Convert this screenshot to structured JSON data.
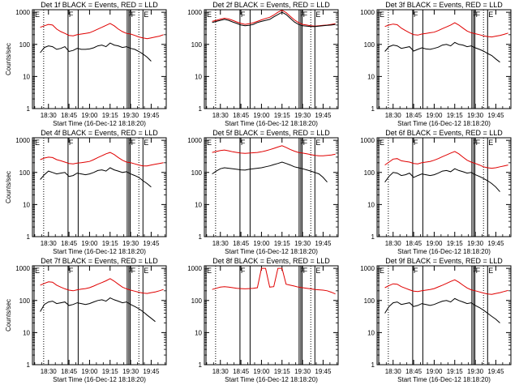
{
  "chart_data": {
    "type": "line",
    "xlabel": "Start Time (16-Dec-12 18:18:20)",
    "ylabel": "Counts/sec",
    "x_ticks": [
      "18:30",
      "18:45",
      "19:00",
      "19:15",
      "19:30",
      "19:45"
    ],
    "x_tick_minutes": [
      30,
      45,
      60,
      75,
      90,
      105
    ],
    "xlim_minutes": [
      18.3,
      116
    ],
    "y_scale": "log",
    "y_ticks": [
      "1",
      "10",
      "100",
      "1000"
    ],
    "y_tick_values": [
      1,
      10,
      100,
      1000
    ],
    "ylim": [
      1,
      1200
    ],
    "colors": {
      "events": "#000000",
      "lld": "#e00000",
      "axis": "#000000"
    },
    "panel_titles": [
      "Det 1f BLACK = Events, RED = LLD",
      "Det 2f BLACK = Events, RED = LLD",
      "Det 3f BLACK = Events, RED = LLD",
      "Det 4f BLACK = Events, RED = LLD",
      "Det 5f BLACK = Events, RED = LLD",
      "Det 6f BLACK = Events, RED = LLD",
      "Det 7f BLACK = Events, RED = LLD",
      "Det 8f BLACK = Events, RED = LLD",
      "Det 9f BLACK = Events, RED = LLD"
    ],
    "markers": [
      {
        "label": "E",
        "minute": 19.5,
        "style": "solid"
      },
      {
        "label": "",
        "minute": 26.5,
        "style": "dotted"
      },
      {
        "label": "F",
        "minute": 44.3,
        "style": "solid"
      },
      {
        "label": "",
        "minute": 51.7,
        "style": "solid"
      },
      {
        "label": "F",
        "minute": 87.5,
        "style": "solid"
      },
      {
        "label": "",
        "minute": 88.7,
        "style": "solid"
      },
      {
        "label": "F",
        "minute": 89.7,
        "style": "solid"
      },
      {
        "label": "",
        "minute": 96.0,
        "style": "dotted"
      },
      {
        "label": "E",
        "minute": 99.0,
        "style": "solid"
      }
    ],
    "minutes": [
      24,
      27,
      30,
      33,
      36,
      39,
      42,
      45,
      48,
      51,
      54,
      57,
      60,
      63,
      66,
      69,
      72,
      75,
      78,
      81,
      84,
      87,
      90,
      93,
      96,
      99,
      102,
      105,
      108,
      111,
      114
    ],
    "series_name_events": "Events",
    "series_name_lld": "LLD",
    "panels": [
      {
        "events": [
          55,
          80,
          90,
          85,
          70,
          75,
          85,
          60,
          65,
          75,
          70,
          70,
          72,
          78,
          90,
          95,
          85,
          110,
          95,
          90,
          80,
          85,
          75,
          70,
          60,
          50,
          40,
          30,
          null,
          null,
          null
        ],
        "lld": [
          340,
          380,
          420,
          400,
          300,
          250,
          220,
          190,
          185,
          200,
          210,
          220,
          230,
          260,
          300,
          340,
          390,
          450,
          380,
          300,
          250,
          220,
          210,
          190,
          170,
          160,
          150,
          160,
          170,
          180,
          200
        ]
      },
      {
        "events": [
          480,
          520,
          560,
          600,
          560,
          500,
          450,
          400,
          380,
          390,
          420,
          480,
          520,
          560,
          600,
          720,
          850,
          1000,
          850,
          650,
          500,
          420,
          380,
          370,
          360,
          360,
          370,
          380,
          390,
          400,
          420
        ],
        "lld": [
          520,
          560,
          610,
          650,
          620,
          560,
          500,
          450,
          420,
          440,
          470,
          520,
          580,
          640,
          700,
          820,
          1000,
          1150,
          980,
          750,
          580,
          480,
          420,
          400,
          380,
          370,
          380,
          390,
          400,
          420,
          440
        ]
      },
      {
        "events": [
          60,
          85,
          95,
          90,
          75,
          80,
          85,
          62,
          70,
          78,
          72,
          70,
          75,
          82,
          95,
          100,
          90,
          115,
          100,
          95,
          85,
          90,
          78,
          70,
          62,
          52,
          45,
          35,
          28,
          null,
          null
        ],
        "lld": [
          360,
          400,
          430,
          410,
          320,
          270,
          230,
          200,
          195,
          210,
          220,
          230,
          240,
          270,
          310,
          350,
          400,
          470,
          400,
          320,
          260,
          230,
          215,
          200,
          185,
          175,
          170,
          180,
          190,
          205,
          225
        ]
      },
      {
        "events": [
          60,
          85,
          110,
          100,
          90,
          95,
          100,
          75,
          80,
          95,
          90,
          85,
          90,
          100,
          115,
          120,
          110,
          140,
          120,
          110,
          100,
          105,
          90,
          80,
          70,
          55,
          45,
          35,
          null,
          null,
          null
        ],
        "lld": [
          250,
          280,
          300,
          290,
          250,
          230,
          210,
          190,
          185,
          195,
          200,
          210,
          220,
          250,
          290,
          330,
          380,
          420,
          360,
          290,
          240,
          210,
          200,
          185,
          170,
          160,
          160,
          170,
          180,
          190,
          200
        ]
      },
      {
        "events": [
          90,
          110,
          130,
          140,
          135,
          130,
          125,
          120,
          118,
          125,
          130,
          135,
          140,
          150,
          160,
          175,
          190,
          210,
          190,
          170,
          150,
          140,
          130,
          120,
          110,
          100,
          90,
          70,
          50,
          null,
          null
        ],
        "lld": [
          420,
          450,
          480,
          500,
          470,
          440,
          420,
          400,
          390,
          400,
          410,
          420,
          440,
          470,
          510,
          560,
          620,
          680,
          600,
          520,
          460,
          420,
          400,
          380,
          360,
          340,
          330,
          330,
          340,
          350,
          370
        ]
      },
      {
        "events": [
          50,
          75,
          100,
          95,
          80,
          85,
          95,
          70,
          80,
          90,
          85,
          80,
          85,
          95,
          110,
          115,
          105,
          130,
          115,
          105,
          95,
          100,
          85,
          75,
          65,
          55,
          45,
          35,
          25,
          null,
          null
        ],
        "lld": [
          170,
          210,
          260,
          270,
          230,
          220,
          210,
          190,
          185,
          200,
          210,
          220,
          240,
          270,
          310,
          350,
          400,
          450,
          380,
          300,
          240,
          210,
          190,
          170,
          150,
          140,
          135,
          140,
          150,
          160,
          170
        ]
      },
      {
        "events": [
          45,
          75,
          90,
          95,
          80,
          85,
          90,
          70,
          75,
          85,
          80,
          75,
          80,
          90,
          100,
          105,
          95,
          120,
          105,
          95,
          85,
          90,
          75,
          65,
          55,
          45,
          35,
          28,
          22,
          null,
          null
        ],
        "lld": [
          300,
          340,
          380,
          370,
          300,
          260,
          230,
          210,
          200,
          215,
          225,
          235,
          250,
          280,
          320,
          360,
          410,
          480,
          400,
          320,
          260,
          230,
          210,
          195,
          180,
          170,
          165,
          175,
          185,
          200,
          220
        ]
      },
      {
        "events": [
          null,
          null,
          null,
          null,
          null,
          null,
          null,
          null,
          null,
          null,
          null,
          null,
          null,
          null,
          null,
          null,
          null,
          null,
          null,
          null,
          null,
          null,
          null,
          null,
          null,
          null,
          null,
          null,
          null,
          null,
          null
        ],
        "lld": [
          220,
          240,
          260,
          270,
          260,
          250,
          240,
          235,
          230,
          235,
          240,
          250,
          1000,
          1000,
          260,
          270,
          1000,
          1000,
          320,
          300,
          280,
          260,
          250,
          240,
          230,
          220,
          215,
          210,
          200,
          180,
          160
        ]
      },
      {
        "events": [
          40,
          65,
          85,
          90,
          75,
          80,
          85,
          65,
          70,
          80,
          75,
          70,
          75,
          85,
          95,
          100,
          90,
          115,
          100,
          90,
          80,
          85,
          70,
          60,
          50,
          40,
          32,
          26,
          20,
          null,
          null
        ],
        "lld": [
          250,
          290,
          330,
          320,
          270,
          240,
          215,
          195,
          190,
          200,
          210,
          220,
          235,
          265,
          300,
          340,
          390,
          440,
          370,
          300,
          245,
          215,
          200,
          185,
          170,
          160,
          155,
          165,
          175,
          190,
          205
        ]
      }
    ]
  }
}
